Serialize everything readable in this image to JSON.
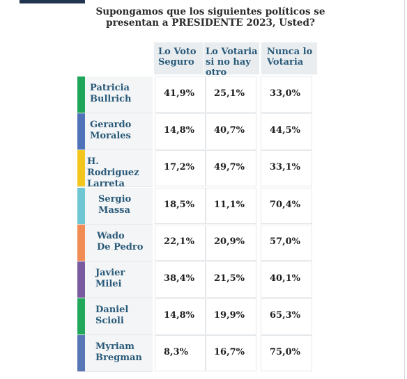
{
  "title_line1": "Supongamos que los siguientes políticos se",
  "title_line2": "presentan a PRESIDENTE 2023, Usted?",
  "headers": {
    "col1": [
      "Lo Voto",
      "Seguro"
    ],
    "col2": [
      "Lo Votaria",
      "si no hay",
      "otro"
    ],
    "col3": [
      "Nunca lo",
      "Votaria"
    ]
  },
  "rows": [
    {
      "name1": "Patricia",
      "name2": "Bullrich",
      "seguro": "41,9%",
      "votaria": "25,1%",
      "nunca": "33,0%",
      "color": "#1fa65a"
    },
    {
      "name1": "Gerardo",
      "name2": "Morales",
      "seguro": "14,8%",
      "votaria": "40,7%",
      "nunca": "44,5%",
      "color": "#5072b8"
    },
    {
      "name1": "H. Rodriguez",
      "name2": "Larreta",
      "seguro": "17,2%",
      "votaria": "49,7%",
      "nunca": "33,1%",
      "color": "#f3c61d"
    },
    {
      "name1": "Sergio",
      "name2": "Massa",
      "seguro": "18,5%",
      "votaria": "11,1%",
      "nunca": "70,4%",
      "color": "#6ec7d2"
    },
    {
      "name1": "Wado",
      "name2": "De Pedro",
      "seguro": "22,1%",
      "votaria": "20,9%",
      "nunca": "57,0%",
      "color": "#f28c55"
    },
    {
      "name1": "Javier",
      "name2": "Milei",
      "seguro": "38,4%",
      "votaria": "21,5%",
      "nunca": "40,1%",
      "color": "#7a5a9e"
    },
    {
      "name1": "Daniel",
      "name2": "Scioli",
      "seguro": "14,8%",
      "votaria": "19,9%",
      "nunca": "65,3%",
      "color": "#22a85a"
    },
    {
      "name1": "Myriam",
      "name2": "Bregman",
      "seguro": "8,3%",
      "votaria": "16,7%",
      "nunca": "75,0%",
      "color": "#5876b5"
    }
  ]
}
